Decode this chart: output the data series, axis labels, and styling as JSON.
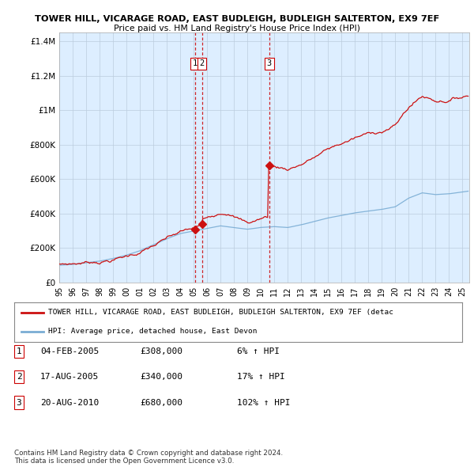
{
  "title": "TOWER HILL, VICARAGE ROAD, EAST BUDLEIGH, BUDLEIGH SALTERTON, EX9 7EF",
  "subtitle": "Price paid vs. HM Land Registry's House Price Index (HPI)",
  "ylabel_ticks": [
    "£0",
    "£200K",
    "£400K",
    "£600K",
    "£800K",
    "£1M",
    "£1.2M",
    "£1.4M"
  ],
  "ytick_values": [
    0,
    200000,
    400000,
    600000,
    800000,
    1000000,
    1200000,
    1400000
  ],
  "ylim": [
    0,
    1450000
  ],
  "xlim_start": 1995.0,
  "xlim_end": 2025.5,
  "transactions": [
    {
      "date": 2005.08,
      "price": 308000,
      "label": "1"
    },
    {
      "date": 2005.62,
      "price": 340000,
      "label": "2"
    },
    {
      "date": 2010.62,
      "price": 680000,
      "label": "3"
    }
  ],
  "vlines": [
    2005.08,
    2005.62,
    2010.62
  ],
  "vline_color": "#cc0000",
  "hpi_color": "#7aadd4",
  "price_color": "#cc1111",
  "chart_bg_color": "#ddeeff",
  "legend_label_price": "TOWER HILL, VICARAGE ROAD, EAST BUDLEIGH, BUDLEIGH SALTERTON, EX9 7EF (detac",
  "legend_label_hpi": "HPI: Average price, detached house, East Devon",
  "table_rows": [
    {
      "num": "1",
      "date": "04-FEB-2005",
      "price": "£308,000",
      "hpi": "6% ↑ HPI"
    },
    {
      "num": "2",
      "date": "17-AUG-2005",
      "price": "£340,000",
      "hpi": "17% ↑ HPI"
    },
    {
      "num": "3",
      "date": "20-AUG-2010",
      "price": "£680,000",
      "hpi": "102% ↑ HPI"
    }
  ],
  "footnote": "Contains HM Land Registry data © Crown copyright and database right 2024.\nThis data is licensed under the Open Government Licence v3.0.",
  "background_color": "#ffffff",
  "grid_color": "#bbccdd",
  "xtick_years": [
    1995,
    1996,
    1997,
    1998,
    1999,
    2000,
    2001,
    2002,
    2003,
    2004,
    2005,
    2006,
    2007,
    2008,
    2009,
    2010,
    2011,
    2012,
    2013,
    2014,
    2015,
    2016,
    2017,
    2018,
    2019,
    2020,
    2021,
    2022,
    2023,
    2024,
    2025
  ]
}
